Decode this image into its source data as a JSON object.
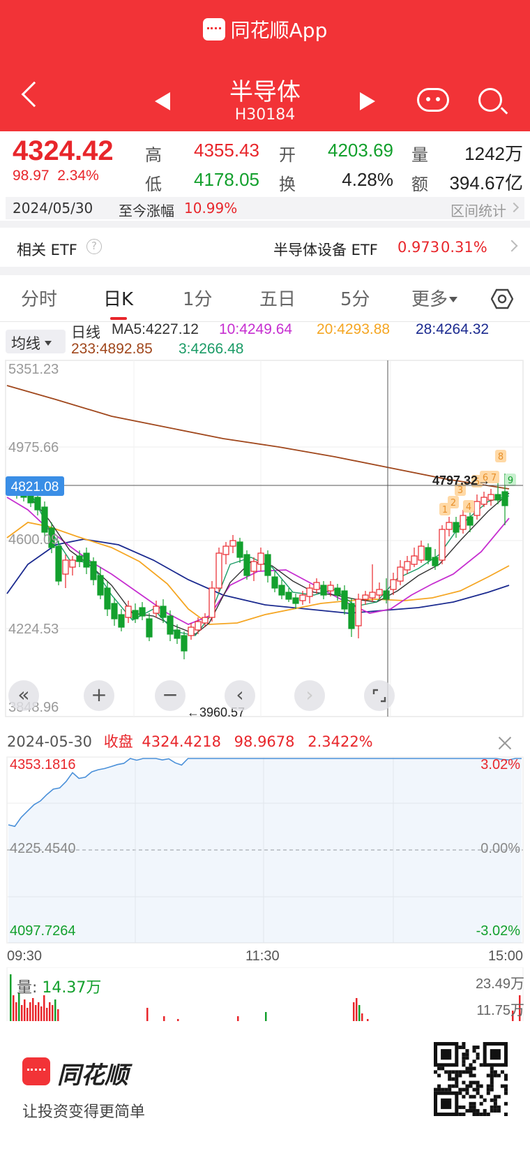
{
  "header": {
    "app_title": "同花顺App",
    "stock_name": "半导体",
    "stock_code": "H30184"
  },
  "quote": {
    "price": "4324.42",
    "change": "98.97",
    "change_pct": "2.34%",
    "high_label": "高",
    "high": "4355.43",
    "open_label": "开",
    "open": "4203.69",
    "volume_label": "量",
    "volume": "1242万",
    "low_label": "低",
    "low": "4178.05",
    "turnover_label": "换",
    "turnover": "4.28%",
    "amount_label": "额",
    "amount": "394.67亿"
  },
  "date_bar": {
    "date": "2024/05/30",
    "since_label": "至今涨幅",
    "since_value": "10.99%",
    "range_stat": "区间统计"
  },
  "etf": {
    "label": "相关 ETF",
    "help": "?",
    "name": "半导体设备 ETF",
    "price": "0.973",
    "pct": "0.31%"
  },
  "tabs": [
    {
      "label": "分时"
    },
    {
      "label": "日K"
    },
    {
      "label": "1分"
    },
    {
      "label": "五日"
    },
    {
      "label": "5分"
    },
    {
      "label": "更多"
    }
  ],
  "ma": {
    "button": "均线",
    "period": "日线",
    "ma5": "MA5:4227.12",
    "ma10": "10:4249.64",
    "ma20": "20:4293.88",
    "ma28": "28:4264.32",
    "ma233": "233:4892.85",
    "ma3": "3:4266.48"
  },
  "kline": {
    "axis_labels": [
      "5351.23",
      "4975.66",
      "4600.09",
      "4224.53",
      "3848.96"
    ],
    "crosshair_value": "4821.08",
    "high_marker": "4797.32→",
    "low_marker": "←3960.57",
    "badge_nums": [
      "1",
      "2",
      "3",
      "4",
      "5",
      "6",
      "7",
      "8",
      "9"
    ],
    "controls": [
      "«",
      "+",
      "−",
      "‹",
      "›"
    ]
  },
  "trend": {
    "date": "2024-05-30",
    "close_label": "收盘",
    "close": "4324.4218",
    "change": "98.9678",
    "pct": "2.3422%",
    "max_price": "4353.1816",
    "base_price": "4225.4540",
    "min_price": "4097.7264",
    "max_pct": "3.02%",
    "base_pct": "0.00%",
    "min_pct": "-3.02%",
    "times": [
      "09:30",
      "11:30",
      "15:00"
    ]
  },
  "volume": {
    "label": "量:",
    "value": "14.37万",
    "axis_top": "23.49万",
    "axis_mid": "11.75万"
  },
  "footer": {
    "brand": "同花顺",
    "slogan": "让投资变得更简单"
  },
  "colors": {
    "brand_red": "#f23337",
    "up_red": "#e8262b",
    "down_green": "#13a02d",
    "ma5": "#333333",
    "ma10": "#c62fd0",
    "ma20": "#f5a623",
    "ma28": "#1b2a8f",
    "ma233": "#a0471c",
    "ma3": "#1a9b66",
    "trend_line": "#4a90d9"
  }
}
